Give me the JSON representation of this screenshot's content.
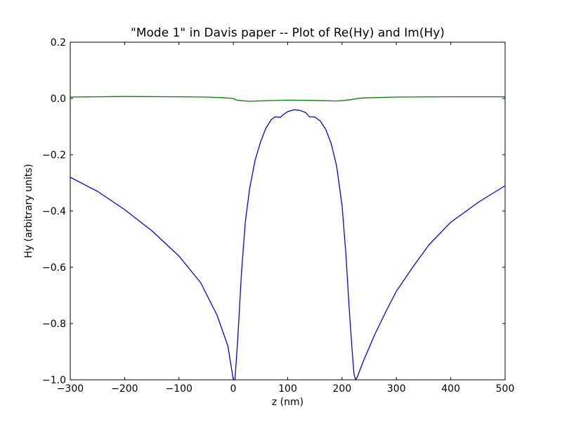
{
  "chart_data": {
    "type": "line",
    "title": "\"Mode 1\" in Davis paper -- Plot of Re(Hy) and Im(Hy)",
    "xlabel": "z (nm)",
    "ylabel": "Hy (arbitrary units)",
    "xlim": [
      -300,
      500
    ],
    "ylim": [
      -1.0,
      0.2
    ],
    "x_ticks": [
      -300,
      -200,
      -100,
      0,
      100,
      200,
      300,
      400,
      500
    ],
    "x_tick_labels": [
      "−300",
      "−200",
      "−100",
      "0",
      "100",
      "200",
      "300",
      "400",
      "500"
    ],
    "y_ticks": [
      0.2,
      0.0,
      -0.2,
      -0.4,
      -0.6,
      -0.8,
      -1.0
    ],
    "y_tick_labels": [
      "0.2",
      "0.0",
      "−0.2",
      "−0.4",
      "−0.6",
      "−0.8",
      "−1.0"
    ],
    "grid": false,
    "series": [
      {
        "color": "#0000ff",
        "points": [
          [
            -300,
            -0.28
          ],
          [
            -250,
            -0.33
          ],
          [
            -200,
            -0.395
          ],
          [
            -150,
            -0.47
          ],
          [
            -100,
            -0.56
          ],
          [
            -60,
            -0.655
          ],
          [
            -30,
            -0.77
          ],
          [
            -10,
            -0.88
          ],
          [
            0,
            -1.0
          ],
          [
            3,
            -1.0
          ],
          [
            8,
            -0.86
          ],
          [
            15,
            -0.62
          ],
          [
            22,
            -0.44
          ],
          [
            30,
            -0.32
          ],
          [
            40,
            -0.22
          ],
          [
            50,
            -0.155
          ],
          [
            60,
            -0.105
          ],
          [
            70,
            -0.075
          ],
          [
            77,
            -0.065
          ],
          [
            87,
            -0.067
          ],
          [
            90,
            -0.06
          ],
          [
            100,
            -0.047
          ],
          [
            112,
            -0.04
          ],
          [
            122,
            -0.042
          ],
          [
            133,
            -0.05
          ],
          [
            140,
            -0.065
          ],
          [
            150,
            -0.066
          ],
          [
            160,
            -0.08
          ],
          [
            170,
            -0.11
          ],
          [
            180,
            -0.16
          ],
          [
            190,
            -0.24
          ],
          [
            200,
            -0.38
          ],
          [
            207,
            -0.55
          ],
          [
            213,
            -0.74
          ],
          [
            218,
            -0.88
          ],
          [
            222,
            -0.98
          ],
          [
            225,
            -1.0
          ],
          [
            228,
            -0.99
          ],
          [
            240,
            -0.93
          ],
          [
            260,
            -0.84
          ],
          [
            280,
            -0.76
          ],
          [
            300,
            -0.685
          ],
          [
            330,
            -0.6
          ],
          [
            360,
            -0.52
          ],
          [
            400,
            -0.44
          ],
          [
            450,
            -0.37
          ],
          [
            500,
            -0.31
          ]
        ]
      },
      {
        "color": "#008000",
        "points": [
          [
            -300,
            0.005
          ],
          [
            -200,
            0.007
          ],
          [
            -100,
            0.006
          ],
          [
            -50,
            0.005
          ],
          [
            -20,
            0.003
          ],
          [
            0,
            0.0
          ],
          [
            5,
            -0.005
          ],
          [
            15,
            -0.008
          ],
          [
            30,
            -0.01
          ],
          [
            60,
            -0.008
          ],
          [
            100,
            -0.006
          ],
          [
            150,
            -0.007
          ],
          [
            190,
            -0.009
          ],
          [
            205,
            -0.007
          ],
          [
            220,
            -0.003
          ],
          [
            228,
            0.0
          ],
          [
            240,
            0.002
          ],
          [
            300,
            0.005
          ],
          [
            400,
            0.006
          ],
          [
            500,
            0.006
          ]
        ]
      }
    ]
  }
}
